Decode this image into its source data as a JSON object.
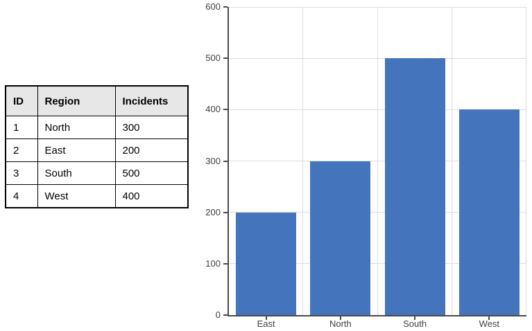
{
  "table": {
    "columns": [
      "ID",
      "Region",
      "Incidents"
    ],
    "rows": [
      {
        "id": "1",
        "region": "North",
        "incidents": "300"
      },
      {
        "id": "2",
        "region": "East",
        "incidents": "200"
      },
      {
        "id": "3",
        "region": "South",
        "incidents": "500"
      },
      {
        "id": "4",
        "region": "West",
        "incidents": "400"
      }
    ]
  },
  "chart_data": {
    "type": "bar",
    "categories": [
      "East",
      "North",
      "South",
      "West"
    ],
    "values": [
      200,
      300,
      500,
      400
    ],
    "title": "",
    "xlabel": "",
    "ylabel": "",
    "ylim": [
      0,
      600
    ],
    "ytick_interval": 100,
    "yticks": [
      0,
      100,
      200,
      300,
      400,
      500,
      600
    ],
    "grid": true,
    "legend": "none",
    "colors": {
      "bar": "#4475BC",
      "gridline": "#DCDCDC",
      "axis_line": "#4A4A4A",
      "tick_label": "#404040"
    }
  }
}
